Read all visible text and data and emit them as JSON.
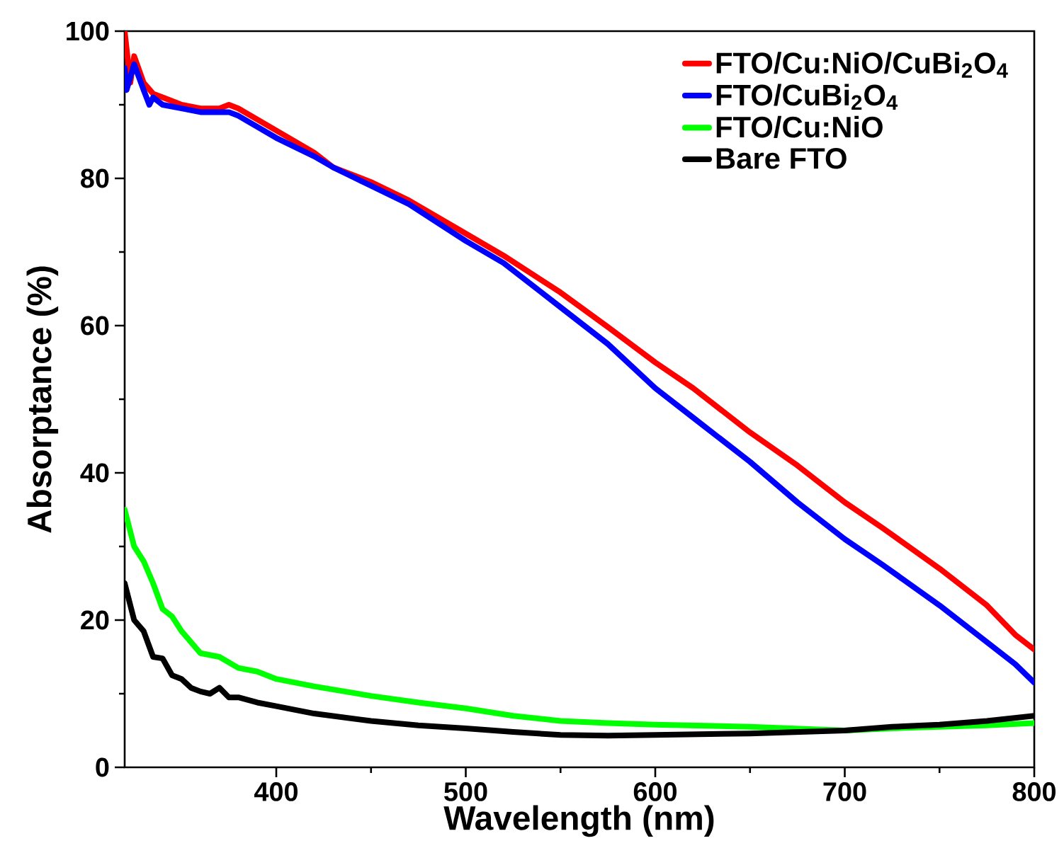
{
  "chart_data": {
    "type": "line",
    "xlabel": "Wavelength (nm)",
    "ylabel": "Absorptance (%)",
    "xlim": [
      320,
      800
    ],
    "ylim": [
      0,
      100
    ],
    "xticks": [
      400,
      500,
      600,
      700,
      800
    ],
    "yticks": [
      0,
      20,
      40,
      60,
      80,
      100
    ],
    "legend": "top right",
    "grid": false,
    "marker": "none",
    "line_style": "solid",
    "series": [
      {
        "name": "FTO/Cu:NiO/CuBi$_{2}$O$_{4}$",
        "color": "#ff0000",
        "x": [
          320,
          323,
          325,
          330,
          335,
          340,
          350,
          360,
          370,
          375,
          380,
          390,
          400,
          420,
          430,
          450,
          470,
          500,
          520,
          550,
          575,
          600,
          620,
          650,
          675,
          700,
          720,
          750,
          775,
          790,
          800
        ],
        "values": [
          100,
          93,
          96.6,
          93,
          91.5,
          91,
          90,
          89.5,
          89.5,
          90,
          89.5,
          88,
          86.5,
          83.5,
          81.5,
          79.5,
          77,
          72.5,
          69.5,
          64.5,
          59.8,
          55,
          51.5,
          45.5,
          41,
          36,
          32.5,
          27,
          22,
          18,
          16
        ]
      },
      {
        "name": "FTO/CuBi$_{2}$O$_{4}$",
        "color": "#0000ff",
        "x": [
          320,
          321,
          325,
          330,
          333,
          335,
          340,
          350,
          360,
          370,
          375,
          380,
          390,
          400,
          420,
          430,
          450,
          470,
          500,
          520,
          550,
          575,
          600,
          620,
          650,
          675,
          700,
          720,
          750,
          775,
          790,
          800
        ],
        "values": [
          95,
          92,
          95.5,
          92,
          90,
          91,
          90,
          89.5,
          89,
          89,
          89,
          88.5,
          87,
          85.5,
          83,
          81.5,
          79,
          76.5,
          71.5,
          68.5,
          62.5,
          57.5,
          51.5,
          47.5,
          41.5,
          36,
          31,
          27.5,
          22,
          17,
          14,
          11.5
        ]
      },
      {
        "name": "FTO/Cu:NiO",
        "color": "#00ff00",
        "x": [
          320,
          325,
          330,
          335,
          340,
          345,
          350,
          360,
          370,
          380,
          390,
          400,
          420,
          450,
          475,
          500,
          525,
          550,
          575,
          600,
          650,
          700,
          725,
          750,
          775,
          800
        ],
        "values": [
          35,
          30,
          28,
          25,
          21.5,
          20.5,
          18.5,
          15.5,
          15,
          13.5,
          13,
          12,
          11,
          9.7,
          8.8,
          8,
          7,
          6.3,
          6,
          5.8,
          5.5,
          5,
          5.3,
          5.5,
          5.7,
          6
        ]
      },
      {
        "name": "Bare FTO",
        "color": "#000000",
        "x": [
          320,
          323,
          325,
          330,
          335,
          340,
          345,
          350,
          355,
          360,
          365,
          370,
          375,
          380,
          390,
          400,
          420,
          450,
          475,
          500,
          525,
          550,
          575,
          600,
          650,
          700,
          725,
          750,
          775,
          800
        ],
        "values": [
          25,
          22,
          20,
          18.5,
          15,
          14.8,
          12.5,
          12,
          10.8,
          10.3,
          10,
          10.8,
          9.5,
          9.5,
          8.8,
          8.3,
          7.3,
          6.3,
          5.7,
          5.3,
          4.8,
          4.4,
          4.3,
          4.4,
          4.6,
          5,
          5.5,
          5.8,
          6.3,
          7
        ]
      }
    ]
  }
}
